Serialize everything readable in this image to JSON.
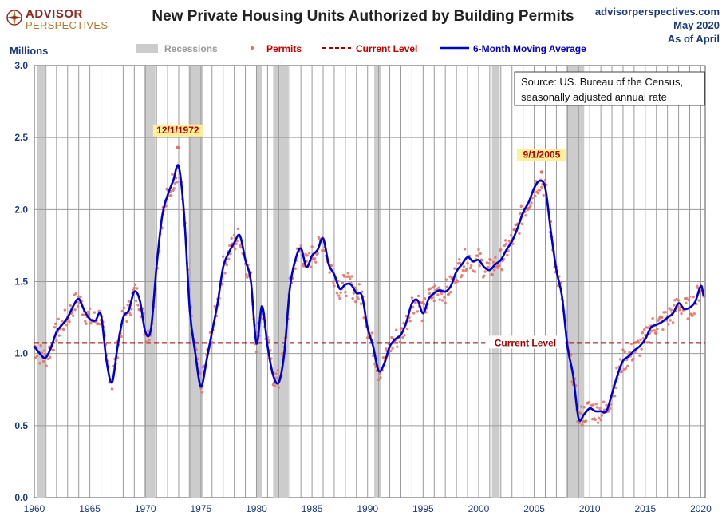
{
  "header": {
    "logo_main": "ADVISOR",
    "logo_sub": "PERSPECTIVES",
    "site": "advisorperspectives.com",
    "date": "May 2020",
    "as_of": "As of April"
  },
  "chart_data": {
    "type": "line",
    "title": "New Private Housing Units Authorized by Building Permits",
    "ylabel": "Millions",
    "xlim": [
      1960,
      2020.4
    ],
    "ylim": [
      0,
      3.0
    ],
    "grid": true,
    "xticks": [
      1960,
      1965,
      1970,
      1975,
      1980,
      1985,
      1990,
      1995,
      2000,
      2005,
      2010,
      2015,
      2020
    ],
    "yticks": [
      0.0,
      0.5,
      1.0,
      1.5,
      2.0,
      2.5,
      3.0
    ],
    "legend": {
      "placement": "top",
      "items": [
        "Recessions",
        "Permits",
        "Current Level",
        "6-Month Moving Average"
      ]
    },
    "colors": {
      "permits": "#e07060",
      "moving_average": "#0000d0",
      "current_level": "#a00000",
      "recession": "#cccccc",
      "gridline": "#9a9a9a"
    },
    "recessions": [
      [
        1960.25,
        1961.1
      ],
      [
        1969.9,
        1970.9
      ],
      [
        1973.9,
        1975.2
      ],
      [
        1980.0,
        1980.5
      ],
      [
        1981.5,
        1982.9
      ],
      [
        1990.6,
        1991.2
      ],
      [
        2001.2,
        2001.9
      ],
      [
        2007.9,
        2009.5
      ]
    ],
    "current_level": {
      "value": 1.074,
      "label": "Current Level"
    },
    "moving_average": {
      "name": "6-Month Moving Average",
      "x": [
        1960.0,
        1960.5,
        1961.0,
        1961.5,
        1962.0,
        1962.5,
        1963.0,
        1963.5,
        1964.0,
        1964.5,
        1965.0,
        1965.5,
        1966.0,
        1966.5,
        1967.0,
        1967.5,
        1968.0,
        1968.5,
        1969.0,
        1969.5,
        1970.0,
        1970.5,
        1971.0,
        1971.5,
        1972.0,
        1972.5,
        1973.0,
        1973.5,
        1974.0,
        1974.5,
        1975.0,
        1975.5,
        1976.0,
        1976.5,
        1977.0,
        1977.5,
        1978.0,
        1978.5,
        1979.0,
        1979.5,
        1980.0,
        1980.5,
        1981.0,
        1981.5,
        1982.0,
        1982.5,
        1983.0,
        1983.5,
        1984.0,
        1984.5,
        1985.0,
        1985.5,
        1986.0,
        1986.5,
        1987.0,
        1987.5,
        1988.0,
        1988.5,
        1989.0,
        1989.5,
        1990.0,
        1990.5,
        1991.0,
        1991.5,
        1992.0,
        1992.5,
        1993.0,
        1993.5,
        1994.0,
        1994.5,
        1995.0,
        1995.5,
        1996.0,
        1996.5,
        1997.0,
        1997.5,
        1998.0,
        1998.5,
        1999.0,
        1999.5,
        2000.0,
        2000.5,
        2001.0,
        2001.5,
        2002.0,
        2002.5,
        2003.0,
        2003.5,
        2004.0,
        2004.5,
        2005.0,
        2005.5,
        2006.0,
        2006.5,
        2007.0,
        2007.5,
        2008.0,
        2008.5,
        2009.0,
        2009.5,
        2010.0,
        2010.5,
        2011.0,
        2011.5,
        2012.0,
        2012.5,
        2013.0,
        2013.5,
        2014.0,
        2014.5,
        2015.0,
        2015.5,
        2016.0,
        2016.5,
        2017.0,
        2017.5,
        2018.0,
        2018.5,
        2019.0,
        2019.5,
        2020.0,
        2020.25
      ],
      "y": [
        1.05,
        1.0,
        0.97,
        1.04,
        1.15,
        1.2,
        1.25,
        1.33,
        1.38,
        1.3,
        1.24,
        1.23,
        1.27,
        0.95,
        0.8,
        1.05,
        1.25,
        1.3,
        1.43,
        1.37,
        1.15,
        1.17,
        1.6,
        1.95,
        2.1,
        2.2,
        2.3,
        1.95,
        1.3,
        1.0,
        0.77,
        0.95,
        1.15,
        1.35,
        1.6,
        1.7,
        1.77,
        1.82,
        1.65,
        1.5,
        1.07,
        1.33,
        1.05,
        0.85,
        0.8,
        1.0,
        1.45,
        1.65,
        1.73,
        1.6,
        1.68,
        1.72,
        1.8,
        1.62,
        1.55,
        1.45,
        1.48,
        1.48,
        1.42,
        1.4,
        1.18,
        1.05,
        0.88,
        0.93,
        1.05,
        1.1,
        1.13,
        1.22,
        1.35,
        1.37,
        1.28,
        1.38,
        1.42,
        1.44,
        1.43,
        1.47,
        1.57,
        1.62,
        1.67,
        1.64,
        1.65,
        1.6,
        1.58,
        1.62,
        1.65,
        1.72,
        1.78,
        1.87,
        1.98,
        2.05,
        2.15,
        2.2,
        2.15,
        1.85,
        1.58,
        1.4,
        1.05,
        0.85,
        0.55,
        0.58,
        0.62,
        0.6,
        0.6,
        0.6,
        0.72,
        0.85,
        0.95,
        0.98,
        1.02,
        1.05,
        1.1,
        1.18,
        1.2,
        1.22,
        1.25,
        1.28,
        1.35,
        1.31,
        1.32,
        1.36,
        1.47,
        1.4
      ]
    },
    "peak_annotations": [
      {
        "label": "12/1/1972",
        "x": 1972.92,
        "y": 2.43
      },
      {
        "label": "9/1/2005",
        "x": 2005.67,
        "y": 2.26
      }
    ],
    "source_note": [
      "Source: US. Bureau of the Census,",
      "seasonally adjusted annual rate"
    ]
  }
}
